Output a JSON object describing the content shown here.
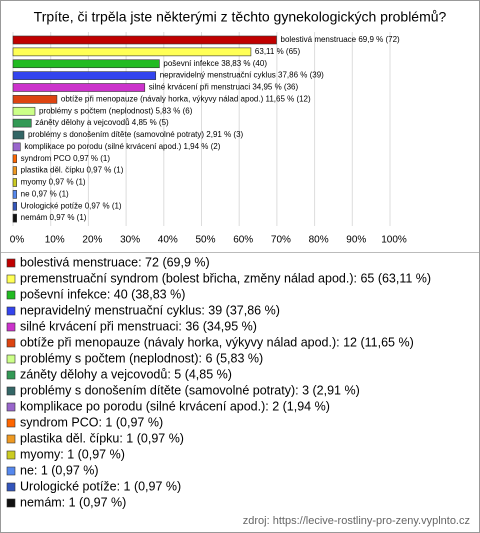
{
  "chart_data": {
    "type": "bar",
    "orientation": "horizontal",
    "title": "Trpíte, či trpěla jste některými z těchto gynekologických problémů?",
    "values": [
      69.9,
      63.11,
      38.83,
      37.86,
      34.95,
      11.65,
      5.83,
      4.85,
      2.91,
      1.94,
      0.97,
      0.97,
      0.97,
      0.97,
      0.97,
      0.97
    ],
    "value_labels": [
      "bolestivá menstruace 69,9 % (72)",
      "63,11 % (65)",
      "poševní infekce 38,83 % (40)",
      "nepravidelný menstruační cyklus 37,86 % (39)",
      "silné krvácení při menstruaci 34,95 % (36)",
      "obtíže při menopauze (návaly horka, výkyvy nálad apod.) 11,65 % (12)",
      "problémy s počtem (neplodnost) 5,83 % (6)",
      "záněty dělohy a vejcovodů 4,85 % (5)",
      "problémy s donošením dítěte (samovolné potraty) 2,91 % (3)",
      "komplikace po porodu (silné krvácení apod.) 1,94 % (2)",
      "syndrom PCO 0,97 % (1)",
      "plastika děl. čípku 0,97 % (1)",
      "myomy 0,97 % (1)",
      "ne 0,97 % (1)",
      "Urologické potíže 0,97 % (1)",
      "nemám 0,97 % (1)"
    ],
    "legend": [
      "bolestivá menstruace: 72 (69,9 %)",
      "premenstruační syndrom (bolest břicha, změny nálad apod.): 65 (63,11 %)",
      "poševní infekce: 40 (38,83 %)",
      "nepravidelný menstruační cyklus: 39 (37,86 %)",
      "silné krvácení při menstruaci: 36 (34,95 %)",
      "obtíže při menopauze (návaly horka, výkyvy nálad apod.): 12 (11,65 %)",
      "problémy s počtem (neplodnost): 6 (5,83 %)",
      "záněty dělohy a vejcovodů: 5 (4,85 %)",
      "problémy s donošením dítěte (samovolné potraty): 3 (2,91 %)",
      "komplikace po porodu (silné krvácení apod.): 2 (1,94 %)",
      "syndrom PCO: 1 (0,97 %)",
      "plastika děl. čípku: 1 (0,97 %)",
      "myomy: 1 (0,97 %)",
      "ne: 1 (0,97 %)",
      "Urologické potíže: 1 (0,97 %)",
      "nemám: 1 (0,97 %)"
    ],
    "colors": [
      "#c00000",
      "#ffff55",
      "#22bb22",
      "#3344ee",
      "#cc33cc",
      "#dd4411",
      "#ccff88",
      "#339955",
      "#336666",
      "#9966cc",
      "#ff6600",
      "#ee9922",
      "#cccc22",
      "#5588ee",
      "#3355bb",
      "#111111"
    ],
    "xlim": [
      0,
      100
    ],
    "xticks": [
      {
        "value": 0,
        "label": "0%"
      },
      {
        "value": 10,
        "label": "10%"
      },
      {
        "value": 20,
        "label": "20%"
      },
      {
        "value": 30,
        "label": "30%"
      },
      {
        "value": 40,
        "label": "40%"
      },
      {
        "value": 50,
        "label": "50%"
      },
      {
        "value": 60,
        "label": "60%"
      },
      {
        "value": 70,
        "label": "70%"
      },
      {
        "value": 80,
        "label": "80%"
      },
      {
        "value": 90,
        "label": "90%"
      },
      {
        "value": 100,
        "label": "100%"
      }
    ],
    "grid": true,
    "source": "zdroj: https://lecive-rostliny-pro-zeny.vyplnto.cz"
  }
}
